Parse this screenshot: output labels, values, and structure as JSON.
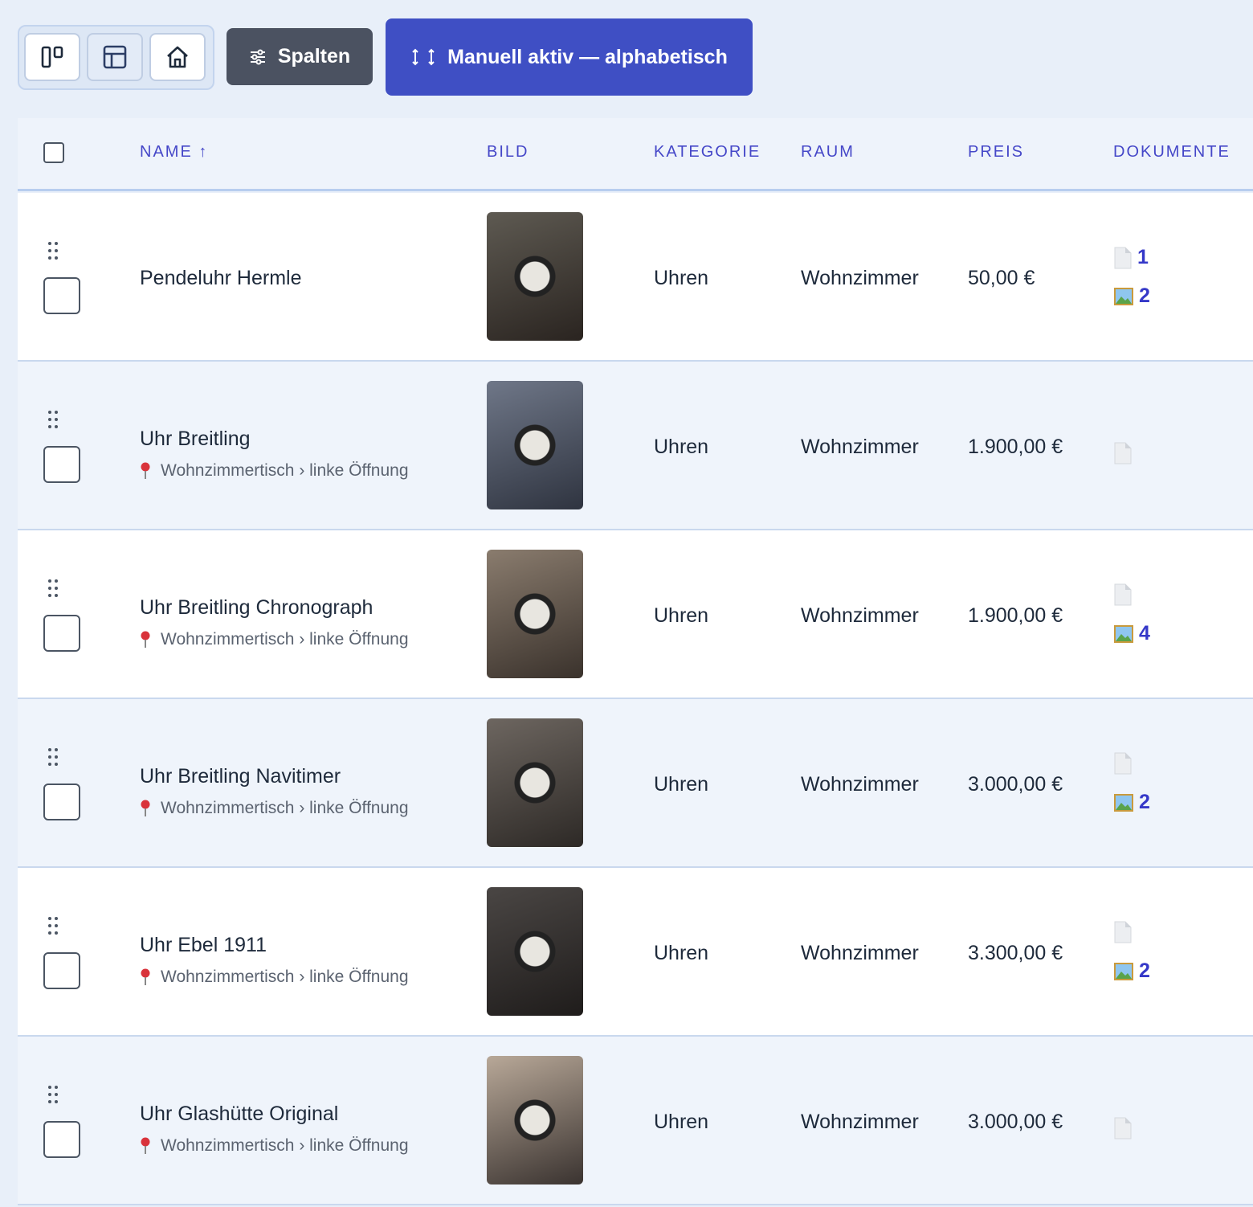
{
  "toolbar": {
    "columns_button": "Spalten",
    "sort_button": "Manuell aktiv — alphabetisch"
  },
  "table": {
    "headers": [
      "NAME ↑",
      "BILD",
      "KATEGORIE",
      "RAUM",
      "PREIS",
      "DOKUMENTE"
    ],
    "rows": [
      {
        "name": "Pendeluhr Hermle",
        "location": null,
        "category": "Uhren",
        "room": "Wohnzimmer",
        "price": "50,00 €",
        "files": "1",
        "images": "2"
      },
      {
        "name": "Uhr Breitling",
        "location": "Wohnzimmertisch › linke Öffnung",
        "category": "Uhren",
        "room": "Wohnzimmer",
        "price": "1.900,00 €",
        "files": null,
        "images": null
      },
      {
        "name": "Uhr Breitling Chronograph",
        "location": "Wohnzimmertisch › linke Öffnung",
        "category": "Uhren",
        "room": "Wohnzimmer",
        "price": "1.900,00 €",
        "files": null,
        "images": "4"
      },
      {
        "name": "Uhr Breitling Navitimer",
        "location": "Wohnzimmertisch › linke Öffnung",
        "category": "Uhren",
        "room": "Wohnzimmer",
        "price": "3.000,00 €",
        "files": null,
        "images": "2"
      },
      {
        "name": "Uhr Ebel 1911",
        "location": "Wohnzimmertisch › linke Öffnung",
        "category": "Uhren",
        "room": "Wohnzimmer",
        "price": "3.300,00 €",
        "files": null,
        "images": "2"
      },
      {
        "name": "Uhr Glashütte Original",
        "location": "Wohnzimmertisch › linke Öffnung",
        "category": "Uhren",
        "room": "Wohnzimmer",
        "price": "3.000,00 €",
        "files": null,
        "images": null
      }
    ]
  }
}
